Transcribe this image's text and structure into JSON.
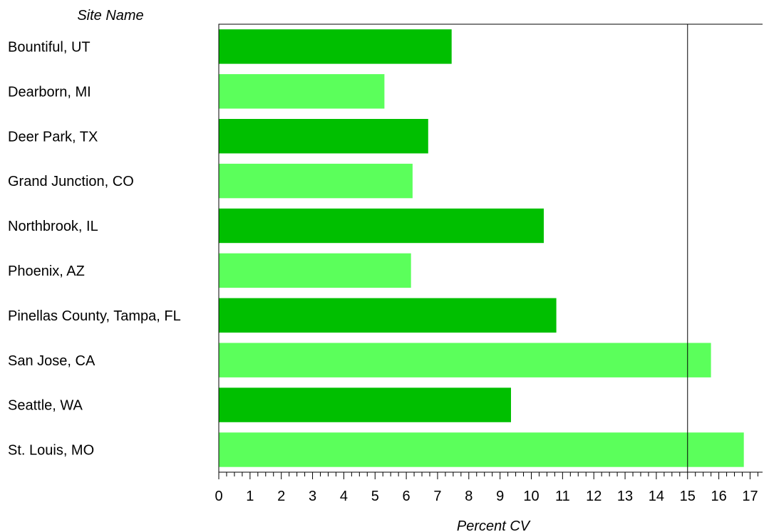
{
  "chart_data": {
    "type": "bar",
    "orientation": "horizontal",
    "category_header": "Site Name",
    "xlabel": "Percent CV",
    "categories": [
      "Bountiful, UT",
      "Dearborn, MI",
      "Deer Park, TX",
      "Grand Junction, CO",
      "Northbrook, IL",
      "Phoenix, AZ",
      "Pinellas County, Tampa, FL",
      "San Jose, CA",
      "Seattle, WA",
      "St. Louis, MO"
    ],
    "values": [
      7.45,
      5.3,
      6.7,
      6.2,
      10.4,
      6.15,
      10.8,
      15.75,
      9.35,
      16.8
    ],
    "xlim": [
      0,
      17.4
    ],
    "xticks": [
      0,
      1,
      2,
      3,
      4,
      5,
      6,
      7,
      8,
      9,
      10,
      11,
      12,
      13,
      14,
      15,
      16,
      17
    ],
    "minor_tick_step": 0.25,
    "reference_line": 15,
    "grid": false,
    "bar_colors": [
      "#00bf00",
      "#5bff5b"
    ]
  }
}
